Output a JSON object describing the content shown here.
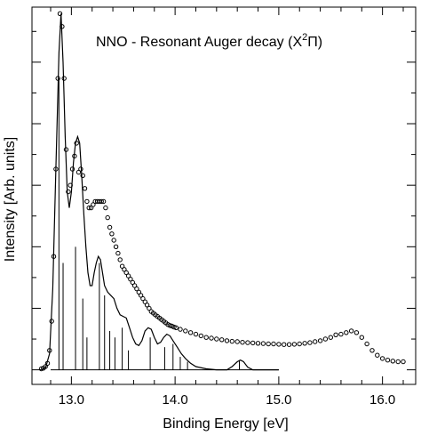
{
  "chart_data": {
    "type": "line",
    "title": "NNO - Resonant Auger decay (X",
    "title_sup": "2",
    "title_sym": "Π",
    "title_close": ")",
    "xlabel": "Binding Energy [eV]",
    "ylabel": "Intensity [Arb. units]",
    "xlim": [
      12.62,
      16.32
    ],
    "ylim": [
      -0.045,
      1.12
    ],
    "x_ticks": [
      {
        "value": 13.0,
        "label": "13.0"
      },
      {
        "value": 14.0,
        "label": "14.0"
      },
      {
        "value": 15.0,
        "label": "15.0"
      },
      {
        "value": 16.0,
        "label": "16.0"
      }
    ],
    "y_major_ticks": [
      0,
      0.19,
      0.38,
      0.57,
      0.76,
      0.95
    ],
    "grid": false,
    "colors": {
      "axis": "#000000",
      "line": "#000000",
      "markers": "#000000"
    },
    "series": [
      {
        "kind": "scatter",
        "marker": "open-circle",
        "points": [
          [
            12.71,
            0.003
          ],
          [
            12.73,
            0.005
          ],
          [
            12.75,
            0.01
          ],
          [
            12.77,
            0.02
          ],
          [
            12.79,
            0.06
          ],
          [
            12.81,
            0.15
          ],
          [
            12.83,
            0.35
          ],
          [
            12.85,
            0.62
          ],
          [
            12.87,
            0.9
          ],
          [
            12.89,
            1.1
          ],
          [
            12.91,
            1.06
          ],
          [
            12.93,
            0.9
          ],
          [
            12.95,
            0.68
          ],
          [
            12.97,
            0.55
          ],
          [
            12.99,
            0.57
          ],
          [
            13.01,
            0.62
          ],
          [
            13.03,
            0.66
          ],
          [
            13.05,
            0.7
          ],
          [
            13.07,
            0.61
          ],
          [
            13.09,
            0.62
          ],
          [
            13.11,
            0.6
          ],
          [
            13.13,
            0.56
          ],
          [
            13.15,
            0.52
          ],
          [
            13.17,
            0.5
          ],
          [
            13.19,
            0.5
          ],
          [
            13.21,
            0.51
          ],
          [
            13.23,
            0.52
          ],
          [
            13.25,
            0.52
          ],
          [
            13.27,
            0.52
          ],
          [
            13.29,
            0.52
          ],
          [
            13.31,
            0.52
          ],
          [
            13.33,
            0.5
          ],
          [
            13.35,
            0.47
          ],
          [
            13.37,
            0.44
          ],
          [
            13.39,
            0.42
          ],
          [
            13.41,
            0.4
          ],
          [
            13.43,
            0.38
          ],
          [
            13.45,
            0.36
          ],
          [
            13.47,
            0.34
          ],
          [
            13.49,
            0.32
          ],
          [
            13.51,
            0.31
          ],
          [
            13.53,
            0.3
          ],
          [
            13.55,
            0.29
          ],
          [
            13.57,
            0.28
          ],
          [
            13.59,
            0.27
          ],
          [
            13.61,
            0.26
          ],
          [
            13.63,
            0.25
          ],
          [
            13.65,
            0.24
          ],
          [
            13.67,
            0.23
          ],
          [
            13.69,
            0.22
          ],
          [
            13.71,
            0.21
          ],
          [
            13.73,
            0.2
          ],
          [
            13.75,
            0.19
          ],
          [
            13.77,
            0.18
          ],
          [
            13.79,
            0.175
          ],
          [
            13.81,
            0.17
          ],
          [
            13.83,
            0.165
          ],
          [
            13.85,
            0.16
          ],
          [
            13.87,
            0.155
          ],
          [
            13.89,
            0.15
          ],
          [
            13.91,
            0.145
          ],
          [
            13.93,
            0.14
          ],
          [
            13.95,
            0.137
          ],
          [
            13.97,
            0.135
          ],
          [
            13.99,
            0.132
          ],
          [
            14.01,
            0.13
          ],
          [
            14.05,
            0.125
          ],
          [
            14.1,
            0.12
          ],
          [
            14.15,
            0.115
          ],
          [
            14.2,
            0.11
          ],
          [
            14.25,
            0.105
          ],
          [
            14.3,
            0.1
          ],
          [
            14.35,
            0.098
          ],
          [
            14.4,
            0.095
          ],
          [
            14.45,
            0.093
          ],
          [
            14.5,
            0.09
          ],
          [
            14.55,
            0.088
          ],
          [
            14.6,
            0.087
          ],
          [
            14.65,
            0.085
          ],
          [
            14.7,
            0.084
          ],
          [
            14.75,
            0.083
          ],
          [
            14.8,
            0.082
          ],
          [
            14.85,
            0.081
          ],
          [
            14.9,
            0.08
          ],
          [
            14.95,
            0.08
          ],
          [
            15.0,
            0.079
          ],
          [
            15.05,
            0.078
          ],
          [
            15.1,
            0.078
          ],
          [
            15.15,
            0.079
          ],
          [
            15.2,
            0.08
          ],
          [
            15.25,
            0.082
          ],
          [
            15.3,
            0.084
          ],
          [
            15.35,
            0.087
          ],
          [
            15.4,
            0.09
          ],
          [
            15.45,
            0.095
          ],
          [
            15.5,
            0.1
          ],
          [
            15.55,
            0.108
          ],
          [
            15.6,
            0.11
          ],
          [
            15.65,
            0.115
          ],
          [
            15.7,
            0.12
          ],
          [
            15.75,
            0.115
          ],
          [
            15.8,
            0.1
          ],
          [
            15.85,
            0.08
          ],
          [
            15.9,
            0.06
          ],
          [
            15.95,
            0.045
          ],
          [
            16.0,
            0.035
          ],
          [
            16.05,
            0.03
          ],
          [
            16.1,
            0.027
          ],
          [
            16.15,
            0.025
          ],
          [
            16.2,
            0.025
          ]
        ]
      },
      {
        "kind": "line",
        "name": "",
        "points": [
          [
            12.7,
            0.0
          ],
          [
            12.75,
            0.005
          ],
          [
            12.79,
            0.05
          ],
          [
            12.82,
            0.25
          ],
          [
            12.85,
            0.62
          ],
          [
            12.88,
            0.98
          ],
          [
            12.9,
            1.1
          ],
          [
            12.92,
            0.95
          ],
          [
            12.94,
            0.72
          ],
          [
            12.96,
            0.55
          ],
          [
            12.98,
            0.5
          ],
          [
            13.0,
            0.55
          ],
          [
            13.02,
            0.64
          ],
          [
            13.04,
            0.7
          ],
          [
            13.06,
            0.72
          ],
          [
            13.08,
            0.7
          ],
          [
            13.1,
            0.6
          ],
          [
            13.12,
            0.48
          ],
          [
            13.14,
            0.38
          ],
          [
            13.16,
            0.3
          ],
          [
            13.18,
            0.26
          ],
          [
            13.2,
            0.26
          ],
          [
            13.22,
            0.3
          ],
          [
            13.24,
            0.33
          ],
          [
            13.26,
            0.35
          ],
          [
            13.28,
            0.34
          ],
          [
            13.3,
            0.3
          ],
          [
            13.32,
            0.26
          ],
          [
            13.35,
            0.24
          ],
          [
            13.38,
            0.23
          ],
          [
            13.41,
            0.22
          ],
          [
            13.44,
            0.19
          ],
          [
            13.47,
            0.17
          ],
          [
            13.5,
            0.165
          ],
          [
            13.53,
            0.16
          ],
          [
            13.56,
            0.13
          ],
          [
            13.59,
            0.1
          ],
          [
            13.62,
            0.08
          ],
          [
            13.65,
            0.075
          ],
          [
            13.68,
            0.09
          ],
          [
            13.71,
            0.12
          ],
          [
            13.74,
            0.13
          ],
          [
            13.77,
            0.125
          ],
          [
            13.8,
            0.1
          ],
          [
            13.83,
            0.08
          ],
          [
            13.86,
            0.085
          ],
          [
            13.89,
            0.1
          ],
          [
            13.92,
            0.11
          ],
          [
            13.95,
            0.105
          ],
          [
            13.98,
            0.09
          ],
          [
            14.02,
            0.07
          ],
          [
            14.06,
            0.05
          ],
          [
            14.1,
            0.035
          ],
          [
            14.15,
            0.02
          ],
          [
            14.2,
            0.01
          ],
          [
            14.3,
            0.003
          ],
          [
            14.4,
            0.0
          ],
          [
            14.5,
            0.0
          ],
          [
            14.55,
            0.01
          ],
          [
            14.6,
            0.025
          ],
          [
            14.63,
            0.03
          ],
          [
            14.66,
            0.025
          ],
          [
            14.7,
            0.008
          ],
          [
            14.75,
            0.0
          ],
          [
            15.0,
            0.0
          ]
        ]
      },
      {
        "kind": "stick",
        "baseline_xlim": [
          12.8,
          15.0
        ],
        "sticks": [
          [
            12.88,
            0.9
          ],
          [
            12.92,
            0.33
          ],
          [
            13.04,
            0.38
          ],
          [
            13.11,
            0.22
          ],
          [
            13.15,
            0.1
          ],
          [
            13.27,
            0.33
          ],
          [
            13.32,
            0.23
          ],
          [
            13.37,
            0.12
          ],
          [
            13.42,
            0.1
          ],
          [
            13.49,
            0.13
          ],
          [
            13.55,
            0.06
          ],
          [
            13.76,
            0.1
          ],
          [
            13.9,
            0.07
          ],
          [
            13.98,
            0.08
          ],
          [
            14.05,
            0.04
          ],
          [
            14.12,
            0.025
          ],
          [
            14.62,
            0.03
          ]
        ]
      }
    ]
  }
}
